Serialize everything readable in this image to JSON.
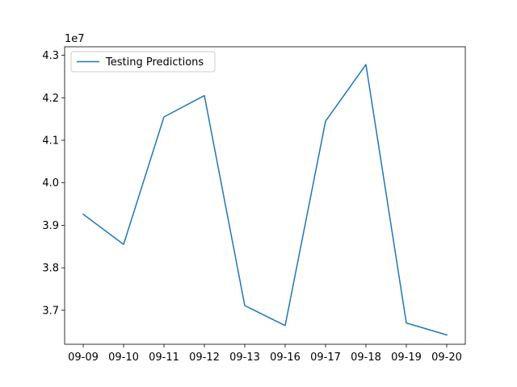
{
  "chart_data": {
    "type": "line",
    "title": "",
    "xlabel": "",
    "ylabel": "",
    "y_offset_label": "1e7",
    "categories": [
      "09-09",
      "09-10",
      "09-11",
      "09-12",
      "09-13",
      "09-16",
      "09-17",
      "09-18",
      "09-19",
      "09-20"
    ],
    "series": [
      {
        "name": "Testing Predictions",
        "color": "#1f77b4",
        "values": [
          39260000,
          38550000,
          41550000,
          42050000,
          37110000,
          36640000,
          41450000,
          42780000,
          36700000,
          36420000
        ]
      }
    ],
    "ylim": [
      36200000,
      43200000
    ],
    "y_ticks": [
      37000000,
      38000000,
      39000000,
      40000000,
      41000000,
      42000000,
      43000000
    ],
    "y_tick_labels": [
      "3.7",
      "3.8",
      "3.9",
      "4.0",
      "4.1",
      "4.2",
      "4.3"
    ],
    "grid": false,
    "legend_position": "upper-left"
  }
}
